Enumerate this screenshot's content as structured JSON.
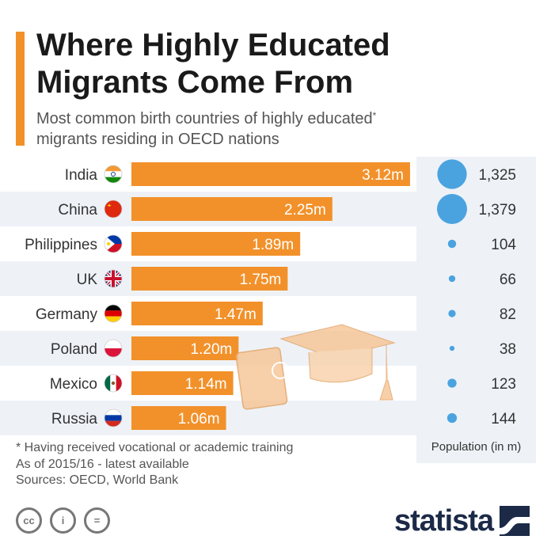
{
  "header": {
    "title_line1": "Where Highly Educated",
    "title_line2": "Migrants Come From",
    "subtitle_line1": "Most common birth countries of highly educated",
    "subtitle_sup": "*",
    "subtitle_line2": "migrants residing in OECD nations"
  },
  "colors": {
    "accent": "#f2912a",
    "bar": "#f2912a",
    "bubble": "#4aa3df",
    "panel": "#eef2f7",
    "logo": "#1c2a48"
  },
  "chart_data": {
    "type": "bar",
    "orientation": "horizontal",
    "categories": [
      "India",
      "China",
      "Philippines",
      "UK",
      "Germany",
      "Poland",
      "Mexico",
      "Russia"
    ],
    "values": [
      3.12,
      2.25,
      1.89,
      1.75,
      1.47,
      1.2,
      1.14,
      1.06
    ],
    "value_labels": [
      "3.12m",
      "2.25m",
      "1.89m",
      "1.75m",
      "1.47m",
      "1.20m",
      "1.14m",
      "1.06m"
    ],
    "population": [
      1325,
      1379,
      104,
      66,
      82,
      38,
      123,
      144
    ],
    "population_labels": [
      "1,325",
      "1,379",
      "104",
      "66",
      "82",
      "38",
      "123",
      "144"
    ],
    "population_caption": "Population (in m)",
    "flags": [
      "india-flag-icon",
      "china-flag-icon",
      "philippines-flag-icon",
      "uk-flag-icon",
      "germany-flag-icon",
      "poland-flag-icon",
      "mexico-flag-icon",
      "russia-flag-icon"
    ]
  },
  "footer": {
    "note_line1": "* Having received vocational or academic training",
    "note_line2": "As of 2015/16 - latest available",
    "sources": "Sources: OECD, World Bank",
    "cc_icons": [
      "cc-icon",
      "by-icon",
      "nd-icon"
    ],
    "cc_labels": [
      "cc",
      "i",
      "="
    ],
    "logo": "statista"
  }
}
